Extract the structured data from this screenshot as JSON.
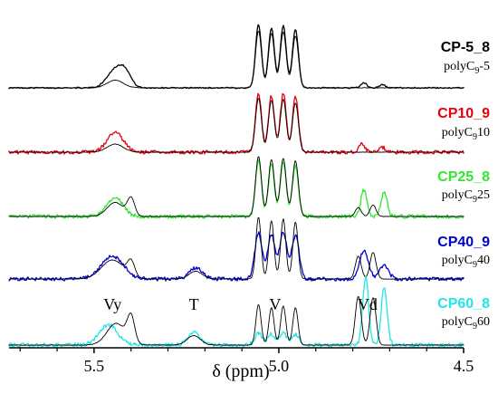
{
  "chart_data": {
    "type": "line",
    "title": "",
    "xlabel": "δ (ppm)",
    "ylabel": "",
    "x_reversed": true,
    "xlim": [
      5.73,
      4.5
    ],
    "xticks": [
      "5.5",
      "5.0",
      "4.5"
    ],
    "grid": false,
    "legend": "right, beside each trace",
    "peak_labels": [
      {
        "text": "Vy",
        "ppm": 5.45
      },
      {
        "text": "T",
        "ppm": 5.23
      },
      {
        "text": "V",
        "ppm": 5.01
      },
      {
        "text": "Vd",
        "ppm": 4.76
      }
    ],
    "colors": {
      "reference": "#000000",
      "CP-5_8": "#000000",
      "CP10_9": "#e8000b",
      "CP25_8": "#33e633",
      "CP40_9": "#0000cc",
      "CP60_8": "#22e5e5"
    },
    "series": [
      {
        "name": "CP-5_8",
        "reference": "polyC9-5",
        "reference_main": "polyC",
        "reference_sub": "9",
        "reference_tail": "-5",
        "color": "#000000",
        "peaks": [
          {
            "ppm": 5.443,
            "height": 0.28,
            "width": 0.022
          },
          {
            "ppm": 5.415,
            "height": 0.2,
            "width": 0.016
          },
          {
            "ppm": 5.055,
            "height": 1.0,
            "width": 0.008
          },
          {
            "ppm": 5.02,
            "height": 0.95,
            "width": 0.008
          },
          {
            "ppm": 4.988,
            "height": 0.98,
            "width": 0.008
          },
          {
            "ppm": 4.955,
            "height": 0.92,
            "width": 0.008
          },
          {
            "ppm": 4.77,
            "height": 0.08,
            "width": 0.008
          },
          {
            "ppm": 4.72,
            "height": 0.05,
            "width": 0.008
          }
        ],
        "ref_peaks": [
          {
            "ppm": 5.443,
            "height": 0.12,
            "width": 0.022
          },
          {
            "ppm": 5.055,
            "height": 0.9,
            "width": 0.008
          },
          {
            "ppm": 5.02,
            "height": 0.86,
            "width": 0.008
          },
          {
            "ppm": 4.988,
            "height": 0.88,
            "width": 0.008
          },
          {
            "ppm": 4.955,
            "height": 0.82,
            "width": 0.008
          }
        ]
      },
      {
        "name": "CP10_9",
        "reference": "polyC910",
        "reference_main": "polyC",
        "reference_sub": "9",
        "reference_tail": "10",
        "color": "#e8000b",
        "peaks": [
          {
            "ppm": 5.443,
            "height": 0.32,
            "width": 0.022
          },
          {
            "ppm": 5.055,
            "height": 0.96,
            "width": 0.008
          },
          {
            "ppm": 5.02,
            "height": 0.92,
            "width": 0.008
          },
          {
            "ppm": 4.988,
            "height": 0.95,
            "width": 0.008
          },
          {
            "ppm": 4.955,
            "height": 0.9,
            "width": 0.008
          },
          {
            "ppm": 4.775,
            "height": 0.14,
            "width": 0.008
          },
          {
            "ppm": 4.72,
            "height": 0.08,
            "width": 0.008
          }
        ],
        "ref_peaks": [
          {
            "ppm": 5.443,
            "height": 0.13,
            "width": 0.022
          },
          {
            "ppm": 5.055,
            "height": 0.88,
            "width": 0.008
          },
          {
            "ppm": 5.02,
            "height": 0.84,
            "width": 0.008
          },
          {
            "ppm": 4.988,
            "height": 0.86,
            "width": 0.008
          },
          {
            "ppm": 4.955,
            "height": 0.8,
            "width": 0.008
          }
        ]
      },
      {
        "name": "CP25_8",
        "reference": "polyC925",
        "reference_main": "polyC",
        "reference_sub": "9",
        "reference_tail": "25",
        "color": "#33e633",
        "peaks": [
          {
            "ppm": 5.443,
            "height": 0.3,
            "width": 0.022
          },
          {
            "ppm": 5.055,
            "height": 0.88,
            "width": 0.008
          },
          {
            "ppm": 5.02,
            "height": 0.82,
            "width": 0.008
          },
          {
            "ppm": 4.988,
            "height": 0.86,
            "width": 0.008
          },
          {
            "ppm": 4.955,
            "height": 0.8,
            "width": 0.008
          },
          {
            "ppm": 4.77,
            "height": 0.42,
            "width": 0.008
          },
          {
            "ppm": 4.715,
            "height": 0.38,
            "width": 0.008
          }
        ],
        "ref_peaks": [
          {
            "ppm": 5.443,
            "height": 0.22,
            "width": 0.022
          },
          {
            "ppm": 5.4,
            "height": 0.28,
            "width": 0.01
          },
          {
            "ppm": 5.055,
            "height": 0.95,
            "width": 0.008
          },
          {
            "ppm": 5.02,
            "height": 0.9,
            "width": 0.008
          },
          {
            "ppm": 4.988,
            "height": 0.92,
            "width": 0.008
          },
          {
            "ppm": 4.955,
            "height": 0.88,
            "width": 0.008
          },
          {
            "ppm": 4.785,
            "height": 0.14,
            "width": 0.008
          },
          {
            "ppm": 4.745,
            "height": 0.18,
            "width": 0.008
          }
        ]
      },
      {
        "name": "CP40_9",
        "reference": "polyC940",
        "reference_main": "polyC",
        "reference_sub": "9",
        "reference_tail": "40",
        "color": "#0000cc",
        "peaks": [
          {
            "ppm": 5.45,
            "height": 0.36,
            "width": 0.03
          },
          {
            "ppm": 5.225,
            "height": 0.18,
            "width": 0.018
          },
          {
            "ppm": 5.055,
            "height": 0.72,
            "width": 0.01
          },
          {
            "ppm": 5.02,
            "height": 0.7,
            "width": 0.01
          },
          {
            "ppm": 4.988,
            "height": 0.72,
            "width": 0.01
          },
          {
            "ppm": 4.955,
            "height": 0.68,
            "width": 0.01
          },
          {
            "ppm": 4.77,
            "height": 0.44,
            "width": 0.012
          },
          {
            "ppm": 4.715,
            "height": 0.22,
            "width": 0.012
          }
        ],
        "ref_peaks": [
          {
            "ppm": 5.45,
            "height": 0.3,
            "width": 0.03
          },
          {
            "ppm": 5.4,
            "height": 0.24,
            "width": 0.01
          },
          {
            "ppm": 5.225,
            "height": 0.12,
            "width": 0.018
          },
          {
            "ppm": 5.055,
            "height": 0.98,
            "width": 0.007
          },
          {
            "ppm": 5.02,
            "height": 0.92,
            "width": 0.007
          },
          {
            "ppm": 4.988,
            "height": 0.95,
            "width": 0.007
          },
          {
            "ppm": 4.955,
            "height": 0.9,
            "width": 0.007
          },
          {
            "ppm": 4.785,
            "height": 0.36,
            "width": 0.008
          },
          {
            "ppm": 4.745,
            "height": 0.42,
            "width": 0.008
          }
        ]
      },
      {
        "name": "CP60_8",
        "reference": "polyC960",
        "reference_main": "polyC",
        "reference_sub": "9",
        "reference_tail": "60",
        "color": "#22e5e5",
        "peaks": [
          {
            "ppm": 5.46,
            "height": 0.3,
            "width": 0.025
          },
          {
            "ppm": 5.23,
            "height": 0.2,
            "width": 0.015
          },
          {
            "ppm": 5.055,
            "height": 0.18,
            "width": 0.01
          },
          {
            "ppm": 5.02,
            "height": 0.16,
            "width": 0.01
          },
          {
            "ppm": 4.988,
            "height": 0.17,
            "width": 0.01
          },
          {
            "ppm": 4.955,
            "height": 0.15,
            "width": 0.01
          },
          {
            "ppm": 4.765,
            "height": 1.0,
            "width": 0.008
          },
          {
            "ppm": 4.715,
            "height": 0.85,
            "width": 0.008
          }
        ],
        "ref_peaks": [
          {
            "ppm": 5.44,
            "height": 0.32,
            "width": 0.025
          },
          {
            "ppm": 5.4,
            "height": 0.38,
            "width": 0.01
          },
          {
            "ppm": 5.23,
            "height": 0.14,
            "width": 0.018
          },
          {
            "ppm": 5.055,
            "height": 0.6,
            "width": 0.007
          },
          {
            "ppm": 5.02,
            "height": 0.55,
            "width": 0.007
          },
          {
            "ppm": 4.988,
            "height": 0.58,
            "width": 0.007
          },
          {
            "ppm": 4.955,
            "height": 0.55,
            "width": 0.007
          },
          {
            "ppm": 4.785,
            "height": 0.72,
            "width": 0.008
          },
          {
            "ppm": 4.745,
            "height": 0.7,
            "width": 0.008
          }
        ]
      }
    ]
  }
}
